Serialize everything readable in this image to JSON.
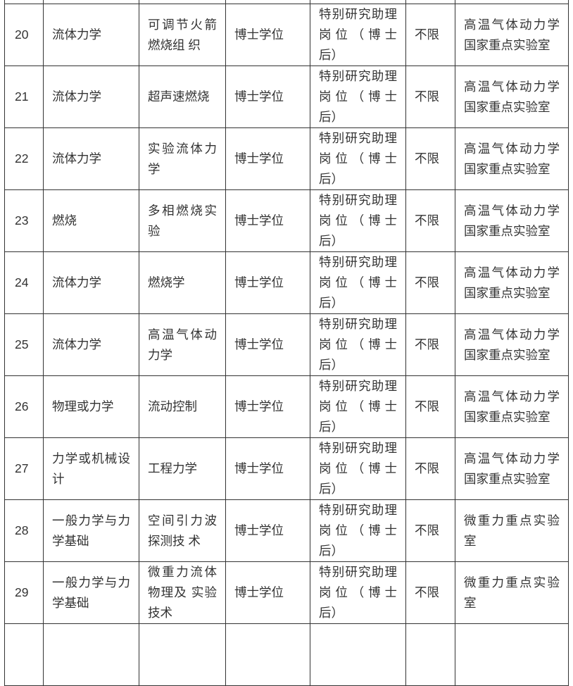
{
  "rows": [
    {
      "no": "20",
      "discipline": "流体力学",
      "direction": "可调节火箭燃烧组 织",
      "degree": "博士学位",
      "position": "特别研究助理岗位（博士后）",
      "age": "不限",
      "unit": "高温气体动力学国家重点实验室"
    },
    {
      "no": "21",
      "discipline": "流体力学",
      "direction": "超声速燃烧",
      "degree": "博士学位",
      "position": "特别研究助理岗位（博士后）",
      "age": "不限",
      "unit": "高温气体动力学国家重点实验室"
    },
    {
      "no": "22",
      "discipline": "流体力学",
      "direction": "实验流体力学",
      "degree": "博士学位",
      "position": "特别研究助理岗位（博士后）",
      "age": "不限",
      "unit": "高温气体动力学国家重点实验室"
    },
    {
      "no": "23",
      "discipline": "燃烧",
      "direction": "多相燃烧实验",
      "degree": "博士学位",
      "position": "特别研究助理岗位（博士后）",
      "age": "不限",
      "unit": "高温气体动力学国家重点实验室"
    },
    {
      "no": "24",
      "discipline": "流体力学",
      "direction": "燃烧学",
      "degree": "博士学位",
      "position": "特别研究助理岗位（博士后）",
      "age": "不限",
      "unit": "高温气体动力学国家重点实验室"
    },
    {
      "no": "25",
      "discipline": "流体力学",
      "direction": "高温气体动力学",
      "degree": "博士学位",
      "position": "特别研究助理岗位（博士后）",
      "age": "不限",
      "unit": "高温气体动力学国家重点实验室"
    },
    {
      "no": "26",
      "discipline": "物理或力学",
      "direction": "流动控制",
      "degree": "博士学位",
      "position": "特别研究助理岗位（博士后）",
      "age": "不限",
      "unit": "高温气体动力学国家重点实验室"
    },
    {
      "no": "27",
      "discipline": "力学或机械设计",
      "direction": "工程力学",
      "degree": "博士学位",
      "position": "特别研究助理岗位（博士后）",
      "age": "不限",
      "unit": "高温气体动力学国家重点实验室"
    },
    {
      "no": "28",
      "discipline": "一般力学与力学基础",
      "direction": "空间引力波探测技 术",
      "degree": "博士学位",
      "position": "特别研究助理岗位（博士后）",
      "age": "不限",
      "unit": "微重力重点实验室"
    },
    {
      "no": "29",
      "discipline": "一般力学与力学基础",
      "direction": "微重力流体物理及 实验技术",
      "degree": "博士学位",
      "position": "特别研究助理岗位（博士后）",
      "age": "不限",
      "unit": "微重力重点实验室"
    }
  ]
}
